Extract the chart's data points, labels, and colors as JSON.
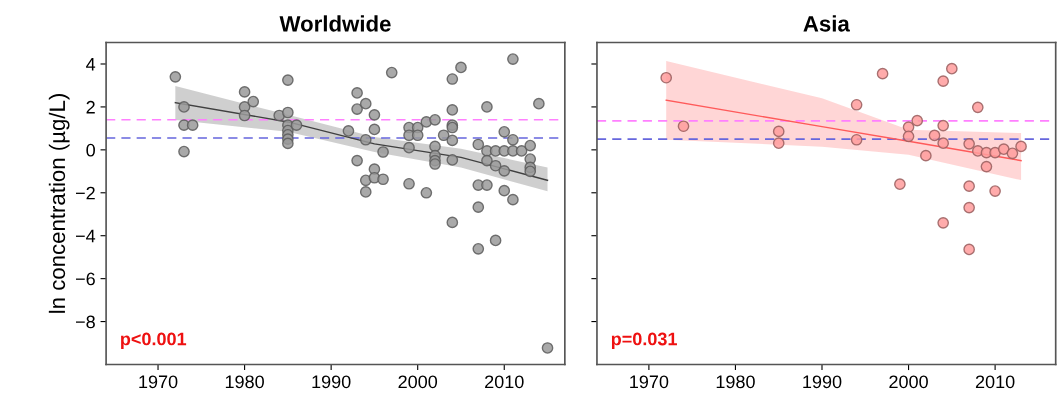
{
  "chart_data": [
    {
      "type": "scatter",
      "title": "Worldwide",
      "ylabel": "ln concentration (µg/L)",
      "xlim": [
        1964,
        2017
      ],
      "xticks": [
        1970,
        1980,
        1990,
        2000,
        2010
      ],
      "ylim": [
        -10,
        5
      ],
      "yticks": [
        {
          "value": 4,
          "label": "4"
        },
        {
          "value": 2,
          "label": "2"
        },
        {
          "value": 0,
          "label": "0"
        },
        {
          "value": -2,
          "label": "−2"
        },
        {
          "value": -4,
          "label": "−4"
        },
        {
          "value": -6,
          "label": "−6"
        },
        {
          "value": -8,
          "label": "−8"
        }
      ],
      "grid": false,
      "legend": false,
      "annotations": [
        "p<0.001"
      ],
      "ref_lines": [
        {
          "axis": "y",
          "value": 1.4,
          "color": "#ff80ff",
          "line_style": "dashed"
        },
        {
          "axis": "y",
          "value": 0.55,
          "color": "#6666dd",
          "line_style": "dashed"
        }
      ],
      "series": [
        {
          "marker": "circle",
          "color": "#9a9a9a",
          "x": [
            1972,
            1973,
            1973,
            1974,
            1973,
            1980,
            1980,
            1981,
            1980,
            1984,
            1985,
            1985,
            1985,
            1985,
            1985,
            1985,
            1985,
            1986,
            1992,
            1993,
            1993,
            1994,
            1995,
            1995,
            1994,
            1996,
            1993,
            1995,
            1994,
            1995,
            1996,
            1994,
            1997,
            1999,
            1999,
            1999,
            1999,
            2000,
            2000,
            2001,
            2002,
            2001,
            2002,
            2002,
            2002,
            2002,
            2003,
            2004,
            2004,
            2004,
            2004,
            2004,
            2004,
            2004,
            2005,
            2007,
            2007,
            2008,
            2007,
            2007,
            2008,
            2008,
            2009,
            2010,
            2011,
            2012,
            2008,
            2009,
            2009,
            2010,
            2010,
            2011,
            2011,
            2011,
            2010,
            2013,
            2013,
            2013,
            2013,
            2014,
            2015
          ],
          "values": [
            3.4,
            2.0,
            1.15,
            1.15,
            -0.08,
            2.7,
            2.0,
            2.25,
            1.6,
            1.6,
            3.25,
            1.74,
            1.15,
            0.9,
            0.7,
            0.5,
            0.3,
            1.15,
            0.88,
            2.65,
            1.9,
            2.15,
            1.63,
            0.95,
            0.47,
            -0.1,
            -0.5,
            -0.9,
            -1.42,
            -1.3,
            -1.37,
            -1.96,
            3.6,
            -1.58,
            0.1,
            1.04,
            0.68,
            1.04,
            0.68,
            1.3,
            1.4,
            -2.0,
            0.16,
            -0.27,
            -0.5,
            -0.66,
            0.68,
            3.3,
            1.86,
            1.15,
            1.04,
            0.44,
            -0.47,
            -3.38,
            3.84,
            0.25,
            -1.64,
            -1.64,
            -2.67,
            -4.61,
            2.0,
            -0.05,
            -0.05,
            -0.05,
            -0.05,
            -0.05,
            -0.5,
            -0.74,
            -4.22,
            0.84,
            -0.98,
            4.23,
            0.47,
            -2.32,
            -1.9,
            0.2,
            -0.43,
            -0.82,
            -1.0,
            2.15,
            -9.23
          ]
        },
        {
          "type": "line",
          "color": "#404040",
          "x": [
            1972,
            1985,
            1995,
            2005,
            2015
          ],
          "values": [
            2.2,
            1.3,
            0.28,
            -0.35,
            -1.42
          ],
          "lower": [
            1.39,
            0.84,
            -0.1,
            -0.82,
            -1.93
          ],
          "upper": [
            2.97,
            1.63,
            0.6,
            0.05,
            -0.82
          ]
        }
      ]
    },
    {
      "type": "scatter",
      "title": "Asia",
      "xlim": [
        1964,
        2017
      ],
      "xticks": [
        1970,
        1980,
        1990,
        2000,
        2010
      ],
      "ylim": [
        -10,
        5
      ],
      "yticks": [
        4,
        2,
        0,
        -2,
        -4,
        -6,
        -8
      ],
      "tick_labels": "x",
      "grid": false,
      "legend": false,
      "annotations": [
        "p=0.031"
      ],
      "ref_lines": [
        {
          "axis": "y",
          "value": 1.35,
          "color": "#ff80ff",
          "line_style": "dashed"
        },
        {
          "axis": "y",
          "value": 0.5,
          "color": "#6666dd",
          "line_style": "dashed"
        }
      ],
      "series": [
        {
          "marker": "circle",
          "color": "#ff9c9c",
          "x": [
            1972,
            1974,
            1985,
            1985,
            1994,
            1994,
            1997,
            1999,
            2000,
            2000,
            2001,
            2002,
            2003,
            2004,
            2004,
            2004,
            2004,
            2005,
            2007,
            2007,
            2007,
            2007,
            2008,
            2008,
            2009,
            2009,
            2010,
            2010,
            2011,
            2012,
            2013
          ],
          "values": [
            3.36,
            1.1,
            0.86,
            0.31,
            2.1,
            0.47,
            3.55,
            -1.6,
            1.06,
            0.63,
            1.36,
            -0.27,
            0.67,
            3.2,
            1.13,
            0.31,
            -3.4,
            3.78,
            0.28,
            -1.69,
            -2.69,
            -4.64,
            1.98,
            -0.05,
            -0.13,
            -0.78,
            -0.13,
            -1.92,
            0.03,
            -0.16,
            0.16
          ]
        },
        {
          "type": "line",
          "color": "#ff5a5a",
          "x": [
            1972,
            1990,
            2000,
            2013
          ],
          "values": [
            2.31,
            1.08,
            0.4,
            -0.5
          ],
          "lower": [
            0.47,
            0.15,
            -0.23,
            -1.41
          ],
          "upper": [
            4.14,
            2.4,
            0.94,
            0.78
          ]
        }
      ]
    }
  ]
}
